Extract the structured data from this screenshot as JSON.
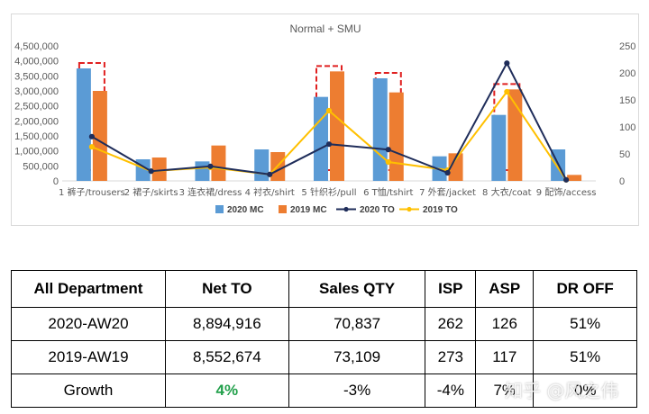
{
  "chart_data": {
    "type": "bar",
    "title": "Normal + SMU",
    "categories": [
      "1 裤子/trousers",
      "2 裙子/skirts",
      "3 连衣裙/dress",
      "4 衬衣/shirt",
      "5 针织衫/pull",
      "6 T恤/tshirt",
      "7 外套/jacket",
      "8 大衣/coat",
      "9 配饰/access"
    ],
    "series": [
      {
        "name": "2020 MC",
        "kind": "bar",
        "axis": "left",
        "color": "#5b9bd5",
        "values": [
          3750000,
          720000,
          650000,
          1050000,
          2800000,
          3420000,
          820000,
          2200000,
          1050000
        ]
      },
      {
        "name": "2019 MC",
        "kind": "bar",
        "axis": "left",
        "color": "#ed7d31",
        "values": [
          3000000,
          780000,
          1180000,
          960000,
          3650000,
          2950000,
          920000,
          3050000,
          200000
        ]
      },
      {
        "name": "2020 TO",
        "kind": "line",
        "axis": "right",
        "color": "#1f2d5a",
        "values": [
          82,
          18,
          27,
          12,
          68,
          58,
          15,
          218,
          2
        ]
      },
      {
        "name": "2019 TO",
        "kind": "line",
        "axis": "right",
        "color": "#ffc000",
        "values": [
          63,
          18,
          25,
          12,
          130,
          35,
          20,
          165,
          2
        ]
      }
    ],
    "ylim_left": [
      0,
      4500000
    ],
    "yticks_left": [
      "0",
      "500,000",
      "1,000,000",
      "1,500,000",
      "2,000,000",
      "2,500,000",
      "3,000,000",
      "3,500,000",
      "4,000,000",
      "4,500,000"
    ],
    "ylim_right": [
      0,
      250
    ],
    "yticks_right": [
      "0",
      "50",
      "100",
      "150",
      "200",
      "250"
    ],
    "highlight_categories": [
      0,
      4,
      5,
      7
    ],
    "legend_position": "bottom",
    "grid": false
  },
  "table": {
    "headers": [
      "All Department",
      "Net TO",
      "Sales QTY",
      "ISP",
      "ASP",
      "DR OFF"
    ],
    "rows": [
      [
        "2020-AW20",
        "8,894,916",
        "70,837",
        "262",
        "126",
        "51%"
      ],
      [
        "2019-AW19",
        "8,552,674",
        "73,109",
        "273",
        "117",
        "51%"
      ],
      [
        "Growth",
        "4%",
        "-3%",
        "-4%",
        "7%",
        "0%"
      ]
    ],
    "highlight_color": "#22a04b"
  },
  "watermark": "知乎 @风之伟"
}
